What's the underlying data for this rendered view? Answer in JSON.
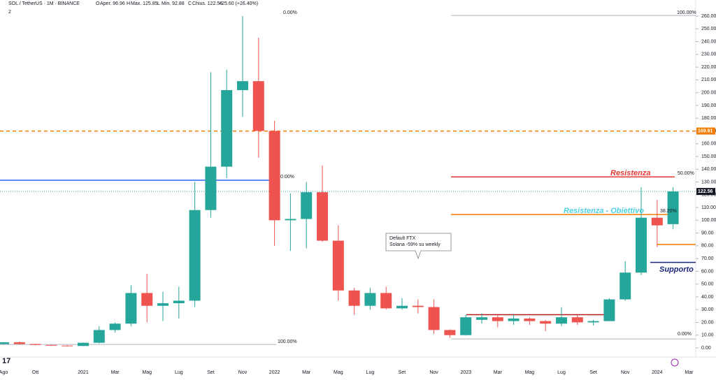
{
  "header": {
    "symbol": "SOL / TetherUS · 1M · BINANCE",
    "fields": [
      [
        "O",
        "Aper. 96.96"
      ],
      [
        "H",
        "Max. 125.85"
      ],
      [
        "L",
        "Min. 92.88"
      ],
      [
        "C",
        "Chius. 122.56"
      ]
    ],
    "change": "+25.60 (+26.40%)",
    "indicators": "2"
  },
  "chart_data": {
    "type": "candlestick",
    "categories": [
      "Ago",
      null,
      "Ott",
      null,
      null,
      "2021",
      null,
      "Mar",
      null,
      "Mag",
      null,
      "Lug",
      null,
      "Set",
      null,
      "Nov",
      null,
      "2022",
      null,
      "Mar",
      null,
      "Mag",
      null,
      "Lug",
      null,
      "Set",
      null,
      "Nov",
      null,
      "2023",
      null,
      "Mar",
      null,
      "Mag",
      null,
      "Lug",
      null,
      "Set",
      null,
      "Nov",
      null,
      "2024",
      null,
      "Mar"
    ],
    "open": [
      3,
      4.4,
      3,
      2.3,
      1.8,
      1.5,
      4,
      14,
      19,
      43,
      33,
      35,
      37,
      108,
      142,
      202,
      209,
      170,
      100,
      101,
      122,
      84,
      45,
      33,
      43,
      31,
      33,
      32,
      14,
      10,
      22,
      24,
      21,
      23,
      21,
      19,
      24,
      20,
      21,
      38,
      59,
      102,
      96.96,
      null
    ],
    "high": [
      4.5,
      5,
      3.3,
      2.5,
      2.2,
      4.2,
      17,
      20,
      49,
      58,
      44,
      48,
      130,
      216,
      218,
      260,
      243,
      178,
      121,
      130,
      143,
      96,
      47,
      47,
      48,
      39,
      38,
      38,
      14.5,
      26,
      27,
      26,
      26,
      24,
      22,
      32,
      26,
      22,
      39,
      68,
      126,
      116,
      125.85,
      null
    ],
    "low": [
      2.5,
      2.8,
      2,
      1.5,
      1.2,
      1.3,
      3.5,
      12,
      17,
      20,
      21,
      23,
      32,
      102,
      133,
      181,
      149,
      80,
      76,
      78,
      83,
      37,
      26,
      30,
      30,
      30,
      27,
      11,
      8,
      9.6,
      19,
      16,
      18,
      18,
      13,
      17,
      18,
      17.5,
      21,
      37,
      57,
      79,
      92.88,
      null
    ],
    "close": [
      4.4,
      3,
      2.3,
      1.8,
      1.5,
      4,
      14,
      19,
      43,
      33,
      35,
      37,
      108,
      142,
      202,
      209,
      170,
      100,
      101,
      122,
      84,
      45,
      33,
      43,
      31,
      33,
      32,
      14,
      10,
      24,
      24,
      21,
      23,
      21,
      19,
      24,
      20,
      21,
      38,
      59,
      102,
      96,
      122.56,
      null
    ],
    "up_color": "#26a69a",
    "down_color": "#ef5350",
    "ylim": [
      -7.1,
      272.6
    ],
    "yticks": [
      {
        "value": 0,
        "label": "0.00"
      },
      {
        "value": 10,
        "label": "10.00"
      },
      {
        "value": 20,
        "label": "20.00"
      },
      {
        "value": 30,
        "label": "30.00"
      },
      {
        "value": 40,
        "label": "40.00"
      },
      {
        "value": 50,
        "label": "50.00"
      },
      {
        "value": 60,
        "label": "60.00"
      },
      {
        "value": 70,
        "label": "70.00"
      },
      {
        "value": 80,
        "label": "80.00"
      },
      {
        "value": 90,
        "label": "90.00"
      },
      {
        "value": 100,
        "label": "100.00"
      },
      {
        "value": 110,
        "label": "110.00"
      },
      {
        "value": 120,
        "label": "120.00"
      },
      {
        "value": 130,
        "label": "130.00"
      },
      {
        "value": 140,
        "label": "140.00"
      },
      {
        "value": 150,
        "label": "150.00"
      },
      {
        "value": 160,
        "label": "160.00"
      },
      {
        "value": 170,
        "label": "170.00"
      },
      {
        "value": 180,
        "label": "180.00"
      },
      {
        "value": 190,
        "label": "190.00"
      },
      {
        "value": 200,
        "label": "200.00"
      },
      {
        "value": 210,
        "label": "210.00"
      },
      {
        "value": 220,
        "label": "220.00"
      },
      {
        "value": 230,
        "label": "230.00"
      },
      {
        "value": 240,
        "label": "240.00"
      },
      {
        "value": 250,
        "label": "250.00"
      },
      {
        "value": 260,
        "label": "260.00"
      }
    ],
    "levels": [
      {
        "value": 131.4,
        "color": "#2962ff"
      },
      {
        "value": 169.91,
        "color": "#f57c00",
        "dashed": true
      },
      {
        "value": 134,
        "color": "#e53935"
      },
      {
        "value": 104.5,
        "color": "#f57c00"
      },
      {
        "value": 81,
        "color": "#f57c00"
      },
      {
        "value": 67,
        "color": "#1a237e"
      },
      {
        "value": 260.5,
        "color": "#b2b5be"
      },
      {
        "value": 2.7,
        "color": "#b2b5be"
      },
      {
        "value": 7,
        "color": "#b2b5be"
      },
      {
        "value": 26,
        "color": "#b71c1c"
      },
      {
        "value": 122.56,
        "color": "#26a69a",
        "dotted": true
      }
    ],
    "price_tags": [
      {
        "value": 169.91,
        "color": "#f57c00"
      },
      {
        "value": 122.56,
        "color": "#131722"
      }
    ],
    "fib_labels": [
      "0.00%",
      "100.00%",
      "0.00%",
      "100.00%",
      "50.00%",
      "38.20%",
      "0.00%"
    ],
    "annotations": [
      "Resistenza",
      "Resistenza - Obiettivo",
      "Supporto"
    ],
    "callout": [
      "Default FTX",
      "Solana -59% su weekly"
    ]
  }
}
